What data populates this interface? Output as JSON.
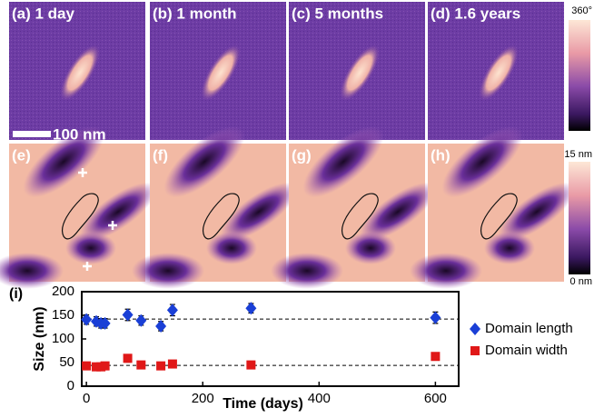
{
  "images": {
    "labels": [
      "(a) 1 day",
      "(b) 1 month",
      "(c) 5 months",
      "(d) 1.6 years",
      "(e)",
      "(f)",
      "(g)",
      "(h)"
    ],
    "scale_bar": "100 nm",
    "phase_colorbar": [
      "360°",
      "0°"
    ],
    "height_colorbar": [
      "15 nm",
      "0 nm"
    ]
  },
  "chart_data": {
    "type": "scatter",
    "panel_label": "(i)",
    "x_label": "Time (days)",
    "y_label": "Size (nm)",
    "xlim": [
      -8,
      640
    ],
    "xticks": [
      0,
      200,
      400,
      600
    ],
    "ylim": [
      0,
      200
    ],
    "yticks": [
      0,
      50,
      100,
      150,
      200
    ],
    "reference_lines": [
      142,
      44
    ],
    "series": [
      {
        "name": "Domain length",
        "color": "#1a3fd6",
        "marker": "diamond",
        "x": [
          0,
          17,
          25,
          32,
          71,
          94,
          128,
          148,
          283,
          600
        ],
        "values": [
          141,
          137,
          133,
          133,
          151,
          139,
          127,
          161,
          165,
          145
        ],
        "errors": [
          10,
          10,
          10,
          10,
          12,
          10,
          10,
          12,
          10,
          12
        ]
      },
      {
        "name": "Domain width",
        "color": "#e01818",
        "marker": "square",
        "x": [
          0,
          17,
          25,
          32,
          71,
          94,
          128,
          148,
          283,
          600
        ],
        "values": [
          43,
          41,
          41,
          43,
          59,
          45,
          43,
          47,
          45,
          63
        ],
        "errors": [
          4,
          4,
          4,
          4,
          8,
          5,
          4,
          4,
          4,
          8
        ]
      }
    ]
  }
}
